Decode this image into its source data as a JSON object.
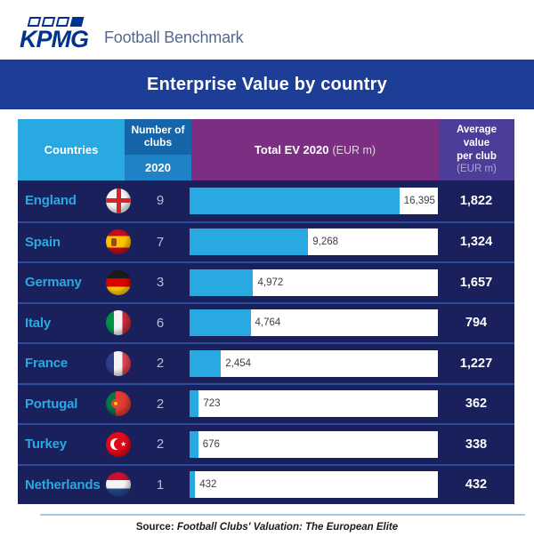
{
  "brand": {
    "logo_text": "KPMG",
    "product_name": "Football Benchmark"
  },
  "title": "Enterprise Value by country",
  "table_header": {
    "countries": "Countries",
    "clubs_line1": "Number of",
    "clubs_line2": "clubs",
    "clubs_year": "2020",
    "total_title": "Total EV 2020",
    "total_unit": "(EUR m)",
    "avg_line1": "Average",
    "avg_line2": "value",
    "avg_line3": "per club",
    "avg_unit": "(EUR m)"
  },
  "rows": [
    {
      "country": "England",
      "flag": "england",
      "clubs": "9",
      "total_label": "16,395",
      "total_value": 16395,
      "avg": "1,822"
    },
    {
      "country": "Spain",
      "flag": "spain",
      "clubs": "7",
      "total_label": "9,268",
      "total_value": 9268,
      "avg": "1,324"
    },
    {
      "country": "Germany",
      "flag": "germany",
      "clubs": "3",
      "total_label": "4,972",
      "total_value": 4972,
      "avg": "1,657"
    },
    {
      "country": "Italy",
      "flag": "italy",
      "clubs": "6",
      "total_label": "4,764",
      "total_value": 4764,
      "avg": "794"
    },
    {
      "country": "France",
      "flag": "france",
      "clubs": "2",
      "total_label": "2,454",
      "total_value": 2454,
      "avg": "1,227"
    },
    {
      "country": "Portugal",
      "flag": "portugal",
      "clubs": "2",
      "total_label": "723",
      "total_value": 723,
      "avg": "362"
    },
    {
      "country": "Turkey",
      "flag": "turkey",
      "clubs": "2",
      "total_label": "676",
      "total_value": 676,
      "avg": "338"
    },
    {
      "country": "Netherlands",
      "flag": "netherlands",
      "clubs": "1",
      "total_label": "432",
      "total_value": 432,
      "avg": "432"
    }
  ],
  "chart_data": {
    "type": "bar",
    "title": "Enterprise Value by country",
    "categories": [
      "England",
      "Spain",
      "Germany",
      "Italy",
      "France",
      "Portugal",
      "Turkey",
      "Netherlands"
    ],
    "series": [
      {
        "name": "Number of clubs 2020",
        "values": [
          9,
          7,
          3,
          6,
          2,
          2,
          2,
          1
        ]
      },
      {
        "name": "Total EV 2020 (EUR m)",
        "values": [
          16395,
          9268,
          4972,
          4764,
          2454,
          723,
          676,
          432
        ]
      },
      {
        "name": "Average value per club (EUR m)",
        "values": [
          1822,
          1324,
          1657,
          794,
          1227,
          362,
          338,
          432
        ]
      }
    ],
    "xlabel": "Total EV 2020 (EUR m)",
    "bar_axis_max": 16395,
    "legend": "none",
    "grid": false
  },
  "footer": {
    "source_label": "Source:",
    "source_text": "Football Clubs' Valuation: The European Elite"
  },
  "colors": {
    "kpmg_blue": "#00338d",
    "brand_text": "#56688f",
    "title_bar_bg": "#1c3e96",
    "row_bg": "#19205c",
    "row_divider": "#2c4d9a",
    "countries_header_bg": "#29a9e1",
    "clubs_header_bg": "#1565a8",
    "clubs_year_bg": "#1f81c6",
    "total_header_bg": "#7c2e83",
    "avg_header_bg": "#4d3d99",
    "bar_fill": "#29a9e1",
    "bar_track": "#ffffff",
    "country_text": "#2aa9e1",
    "footer_rule": "#9ec7e8"
  }
}
